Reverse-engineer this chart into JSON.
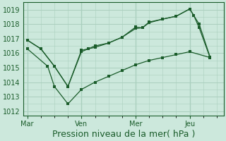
{
  "bg_color": "#cce8dc",
  "grid_color": "#aacfbe",
  "line_color": "#1a5c2a",
  "marker_color": "#1a5c2a",
  "xlabel": "Pression niveau de la mer( hPa )",
  "xlabel_fontsize": 9,
  "yticks": [
    1012,
    1013,
    1014,
    1015,
    1016,
    1017,
    1018,
    1019
  ],
  "xtick_labels": [
    "Mar",
    "Ven",
    "Mer",
    "Jeu"
  ],
  "xtick_positions": [
    0,
    4,
    8,
    12
  ],
  "xmin": -0.3,
  "xmax": 14.5,
  "ymin": 1011.7,
  "ymax": 1019.5,
  "series": [
    {
      "x": [
        0,
        1,
        2,
        3,
        4,
        4.5,
        5,
        6,
        7,
        8,
        8.5,
        9,
        10,
        11,
        12,
        12.3,
        12.7,
        13.5
      ],
      "y": [
        1016.9,
        1016.3,
        1015.1,
        1013.7,
        1016.1,
        1016.3,
        1016.4,
        1016.7,
        1017.1,
        1017.7,
        1017.75,
        1018.1,
        1018.35,
        1018.55,
        1019.05,
        1018.6,
        1017.75,
        1015.7
      ]
    },
    {
      "x": [
        0,
        1,
        2,
        3,
        4,
        4.5,
        5,
        6,
        7,
        8,
        8.5,
        9,
        10,
        11,
        12,
        12.7,
        13.5
      ],
      "y": [
        1016.9,
        1016.3,
        1015.1,
        1013.7,
        1016.2,
        1016.3,
        1016.5,
        1016.7,
        1017.1,
        1017.8,
        1017.75,
        1018.15,
        1018.35,
        1018.55,
        1019.05,
        1018.0,
        1015.75
      ]
    },
    {
      "x": [
        0,
        1.5,
        2,
        3,
        4,
        5,
        6,
        7,
        8,
        9,
        10,
        11,
        12,
        13.5
      ],
      "y": [
        1016.3,
        1015.1,
        1013.7,
        1012.5,
        1013.5,
        1014.0,
        1014.4,
        1014.8,
        1015.2,
        1015.5,
        1015.7,
        1015.9,
        1016.1,
        1015.7
      ]
    }
  ]
}
